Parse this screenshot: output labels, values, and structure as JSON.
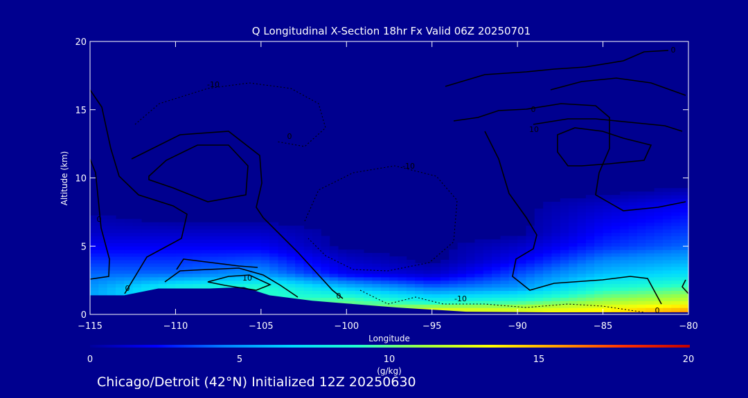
{
  "chart_data": {
    "type": "heatmap",
    "title": "Q Longitudinal X-Section 18hr  Fx Valid 06Z 20250701",
    "xlabel": "Longitude",
    "ylabel": "Altitude (km)",
    "xlim": [
      -115,
      -80
    ],
    "ylim": [
      0,
      20
    ],
    "x_ticks": [
      -115,
      -110,
      -105,
      -100,
      -95,
      -90,
      -85,
      -80
    ],
    "y_ticks": [
      0,
      5,
      10,
      15,
      20
    ],
    "colorbar": {
      "label": "(g/kg)",
      "range": [
        0,
        20
      ],
      "ticks": [
        0,
        5,
        10,
        15,
        20
      ],
      "colors": [
        "#00009a",
        "#0000ff",
        "#0080ff",
        "#00d8ff",
        "#20ffd0",
        "#a0ff40",
        "#ffff00",
        "#ffa000",
        "#ff3000",
        "#c00000"
      ]
    },
    "terrain_km": [
      [
        -115,
        1.4
      ],
      [
        -113,
        1.4
      ],
      [
        -111,
        1.9
      ],
      [
        -108,
        1.9
      ],
      [
        -106,
        2.0
      ],
      [
        -104.5,
        1.4
      ],
      [
        -102,
        1.0
      ],
      [
        -100,
        0.8
      ],
      [
        -97,
        0.5
      ],
      [
        -93,
        0.2
      ],
      [
        -88,
        0.15
      ],
      [
        -80,
        0.15
      ]
    ],
    "moisture_field_gkg": [
      {
        "lon": -115,
        "profile": [
          [
            0,
            6
          ],
          [
            2,
            5
          ],
          [
            4,
            3
          ],
          [
            6,
            1
          ],
          [
            8,
            0
          ]
        ]
      },
      {
        "lon": -110,
        "profile": [
          [
            2,
            8
          ],
          [
            3,
            4
          ],
          [
            5,
            2
          ],
          [
            7,
            0
          ]
        ]
      },
      {
        "lon": -105,
        "profile": [
          [
            2,
            9
          ],
          [
            3,
            5
          ],
          [
            5,
            2
          ],
          [
            7,
            0
          ]
        ]
      },
      {
        "lon": -100,
        "profile": [
          [
            1,
            10
          ],
          [
            2,
            6
          ],
          [
            3,
            2
          ],
          [
            5,
            0
          ]
        ]
      },
      {
        "lon": -95,
        "profile": [
          [
            0.3,
            13
          ],
          [
            1,
            8
          ],
          [
            2,
            4
          ],
          [
            3,
            1
          ],
          [
            4,
            0
          ]
        ]
      },
      {
        "lon": -90,
        "profile": [
          [
            0.2,
            13
          ],
          [
            1,
            9
          ],
          [
            2,
            5
          ],
          [
            4,
            2
          ],
          [
            6,
            0
          ]
        ]
      },
      {
        "lon": -85,
        "profile": [
          [
            0.2,
            14
          ],
          [
            1,
            11
          ],
          [
            3,
            6
          ],
          [
            5,
            3
          ],
          [
            8,
            1
          ],
          [
            9,
            0
          ]
        ]
      },
      {
        "lon": -80,
        "profile": [
          [
            0.2,
            16
          ],
          [
            1,
            12
          ],
          [
            3,
            7
          ],
          [
            5,
            4
          ],
          [
            8,
            2
          ],
          [
            9.5,
            0
          ]
        ]
      }
    ],
    "contours": {
      "solid_labels": [
        "0",
        "0",
        "10",
        "0",
        "0",
        "10",
        "0",
        "0",
        "0"
      ],
      "dashed_labels": [
        "-10",
        "-10",
        "-10"
      ]
    }
  },
  "footer": "Chicago/Detroit (42°N) Initialized 12Z 20250630"
}
